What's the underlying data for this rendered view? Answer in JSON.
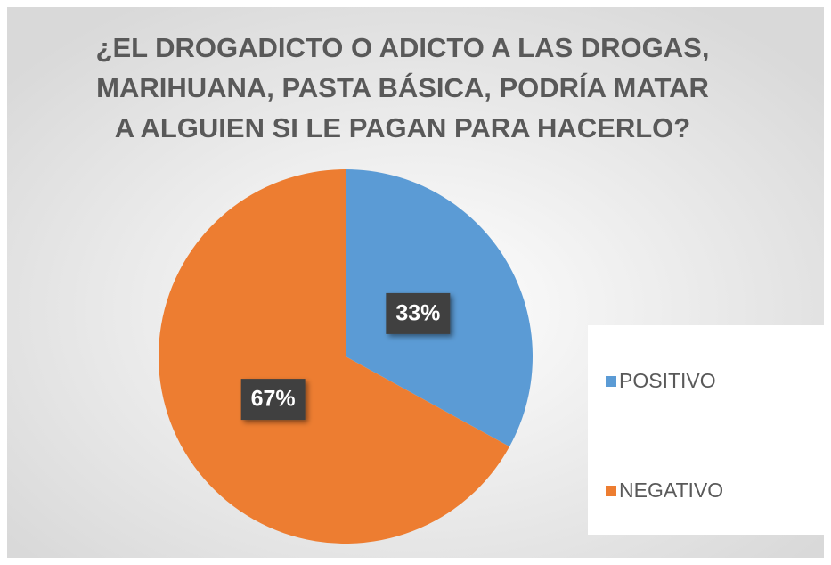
{
  "chart_data": {
    "type": "pie",
    "title": [
      "¿EL  DROGADICTO O ADICTO A LAS DROGAS,",
      "MARIHUANA, PASTA BÁSICA,  PODRÍA MATAR",
      "A ALGUIEN SI LE PAGAN PARA HACERLO?"
    ],
    "categories": [
      "POSITIVO",
      "NEGATIVO"
    ],
    "values": [
      33,
      67
    ],
    "value_labels": [
      "33%",
      "67%"
    ],
    "colors": [
      "#5b9bd5",
      "#ed7d31"
    ],
    "legend": "right"
  }
}
